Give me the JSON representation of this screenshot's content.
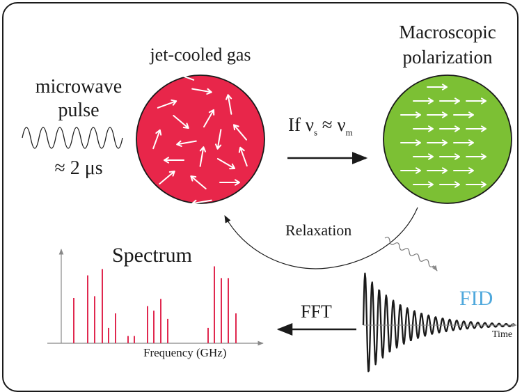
{
  "labels": {
    "microwave_line1": "microwave",
    "microwave_line2": "pulse",
    "pulse_duration": "≈ 2 μs",
    "jet_cooled": "jet-cooled gas",
    "macroscopic_line1": "Macroscopic",
    "macroscopic_line2": "polarization",
    "condition_prefix": "If ν",
    "condition_sub1": "s",
    "condition_mid": " ≈ ν",
    "condition_sub2": "m",
    "relaxation": "Relaxation",
    "fid": "FID",
    "spectrum": "Spectrum",
    "fft": "FFT",
    "frequency_axis": "Frequency (GHz)",
    "time_axis": "Time"
  },
  "colors": {
    "gas_sphere": "#e8264a",
    "polarized_sphere": "#7cc034",
    "spectrum_lines": "#e0284f",
    "fid_label": "#4fa8dc",
    "ink": "#1a1a1a"
  },
  "spectrum_lines": [
    0.5,
    0.75,
    0.52,
    0.82,
    0.17,
    0.33,
    0.08,
    0.08,
    0.41,
    0.36,
    0.49,
    0.27,
    0.17,
    0.85,
    0.72,
    0.72,
    0.33
  ]
}
